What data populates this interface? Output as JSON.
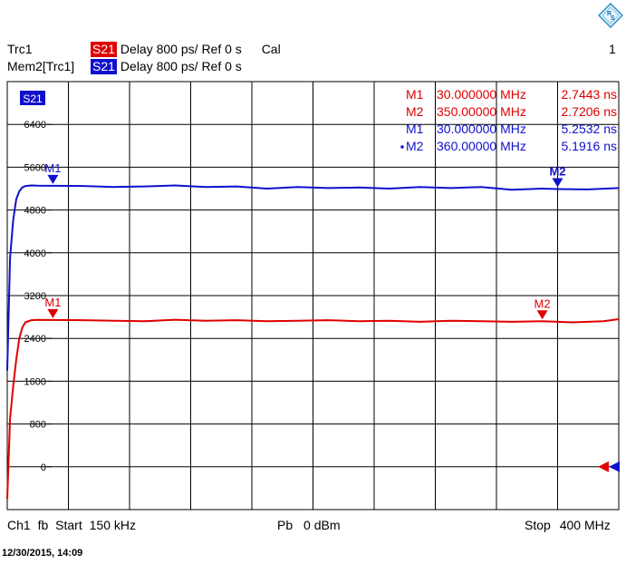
{
  "header": {
    "line1": {
      "name": "Trc1",
      "meas": "S21",
      "format": "Delay",
      "scale": "800 ps/",
      "ref": "Ref 0 s",
      "extra": "Cal",
      "channel_no": "1"
    },
    "line2": {
      "name": "Mem2[Trc1]",
      "meas": "S21",
      "format": "Delay",
      "scale": "800 ps/",
      "ref": "Ref 0 s"
    }
  },
  "footer": {
    "channel": "Ch1",
    "fb": "fb",
    "start_label": "Start",
    "start_value": "150 kHz",
    "power_label": "Pb",
    "power_value": "0 dBm",
    "stop_label": "Stop",
    "stop_value": "400 MHz"
  },
  "timestamp": "12/30/2015, 14:09",
  "colors": {
    "red": "#e00000",
    "blue": "#1010cc",
    "grid": "#000000"
  },
  "chart_data": {
    "type": "line",
    "trace_badge": "S21",
    "xlim": [
      0.15,
      400
    ],
    "ylim": [
      -800,
      7200
    ],
    "ytick_values": [
      0,
      800,
      1600,
      2400,
      3200,
      4000,
      4800,
      5600,
      6400
    ],
    "ytick_labels": [
      "0",
      "800",
      "1600",
      "2400",
      "3200",
      "4000",
      "4800",
      "5600",
      "6400"
    ],
    "series": [
      {
        "color": "#1010cc",
        "x": [
          0.15,
          2,
          4,
          6,
          8,
          10,
          12,
          16,
          20,
          30,
          50,
          70,
          90,
          110,
          130,
          150,
          170,
          190,
          210,
          230,
          250,
          270,
          290,
          310,
          330,
          350,
          360,
          380,
          400
        ],
        "y": [
          1800,
          3900,
          4600,
          5000,
          5150,
          5220,
          5250,
          5260,
          5255,
          5253,
          5250,
          5230,
          5240,
          5260,
          5230,
          5240,
          5200,
          5230,
          5210,
          5220,
          5200,
          5230,
          5210,
          5230,
          5180,
          5200,
          5192,
          5185,
          5210
        ]
      },
      {
        "color": "#e00000",
        "x": [
          0.15,
          2,
          4,
          6,
          8,
          10,
          12,
          16,
          20,
          30,
          50,
          70,
          90,
          110,
          130,
          150,
          170,
          190,
          210,
          230,
          250,
          270,
          290,
          310,
          330,
          350,
          370,
          390,
          400
        ],
        "y": [
          -600,
          900,
          1500,
          2000,
          2400,
          2600,
          2700,
          2740,
          2745,
          2744,
          2740,
          2730,
          2720,
          2750,
          2730,
          2740,
          2720,
          2730,
          2740,
          2720,
          2730,
          2710,
          2730,
          2720,
          2710,
          2721,
          2700,
          2720,
          2760
        ]
      }
    ],
    "markers": {
      "table": [
        {
          "label": "M1",
          "freq": "30.000000 MHz",
          "value": "2.7443 ns",
          "color": "#e00000",
          "active": false
        },
        {
          "label": "M2",
          "freq": "350.00000 MHz",
          "value": "2.7206 ns",
          "color": "#e00000",
          "active": false
        },
        {
          "label": "M1",
          "freq": "30.000000 MHz",
          "value": "5.2532 ns",
          "color": "#1010cc",
          "active": false
        },
        {
          "label": "M2",
          "freq": "360.00000 MHz",
          "value": "5.1916 ns",
          "color": "#1010cc",
          "active": true
        }
      ],
      "points": [
        {
          "label": "M1",
          "x": 30,
          "y": 5253,
          "color": "#1010cc",
          "bold": false
        },
        {
          "label": "M2",
          "x": 360,
          "y": 5192,
          "color": "#1010cc",
          "bold": true
        },
        {
          "label": "M1",
          "x": 30,
          "y": 2744,
          "color": "#e00000",
          "bold": false
        },
        {
          "label": "M2",
          "x": 350,
          "y": 2721,
          "color": "#e00000",
          "bold": false
        }
      ]
    }
  }
}
